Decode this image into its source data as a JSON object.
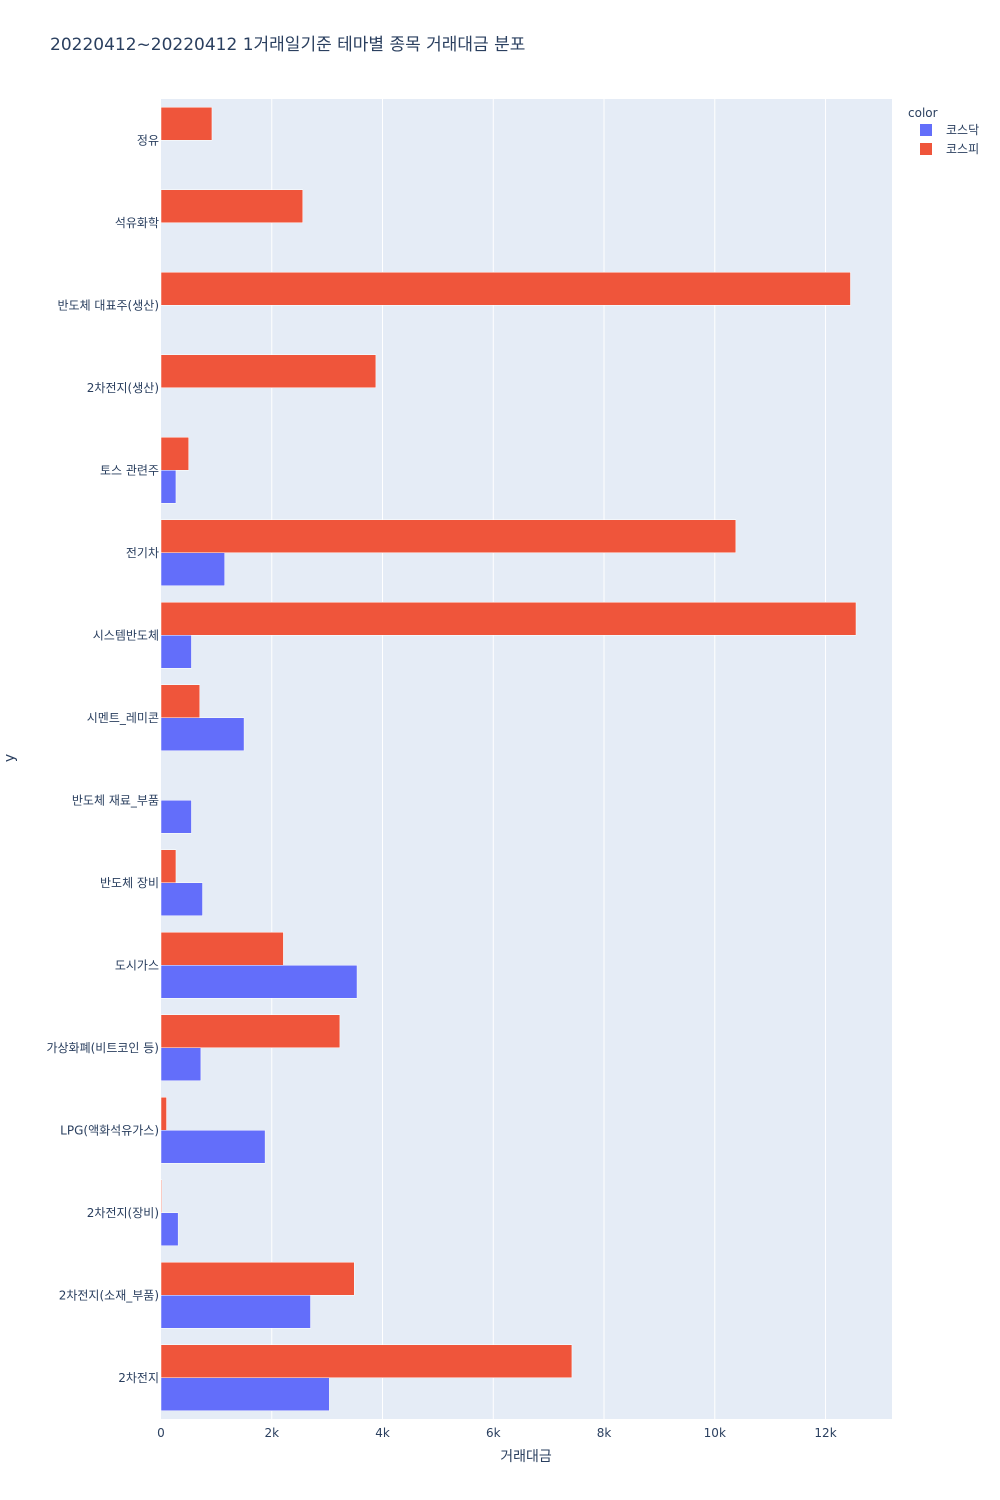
{
  "chart_data": {
    "type": "bar",
    "orientation": "horizontal",
    "title": "20220412~20220412 1거래일기준 테마별 종목 거래대금 분포",
    "xlabel": "거래대금",
    "ylabel": "y",
    "xlim": [
      0,
      13200
    ],
    "x_ticks": [
      {
        "value": 0,
        "label": "0"
      },
      {
        "value": 2000,
        "label": "2k"
      },
      {
        "value": 4000,
        "label": "4k"
      },
      {
        "value": 6000,
        "label": "6k"
      },
      {
        "value": 8000,
        "label": "8k"
      },
      {
        "value": 10000,
        "label": "10k"
      },
      {
        "value": 12000,
        "label": "12k"
      }
    ],
    "categories": [
      "2차전지",
      "2차전지(소재_부품)",
      "2차전지(장비)",
      "LPG(액화석유가스)",
      "가상화폐(비트코인 등)",
      "도시가스",
      "반도체 장비",
      "반도체 재료_부품",
      "시멘트_레미콘",
      "시스템반도체",
      "전기차",
      "토스 관련주",
      "2차전지(생산)",
      "반도체 대표주(생산)",
      "석유화학",
      "정유"
    ],
    "legend_title": "color",
    "legend_position": "top-right",
    "grid": true,
    "series": [
      {
        "name": "코스닥",
        "color": "#636efa",
        "values": [
          3040,
          2700,
          310,
          1880,
          720,
          3540,
          750,
          550,
          1500,
          550,
          1150,
          270,
          0,
          0,
          0,
          0
        ]
      },
      {
        "name": "코스피",
        "color": "#ef553b",
        "values": [
          7420,
          3490,
          15,
          100,
          3230,
          2210,
          270,
          0,
          700,
          12550,
          10380,
          500,
          3880,
          12450,
          2560,
          920
        ]
      }
    ]
  }
}
